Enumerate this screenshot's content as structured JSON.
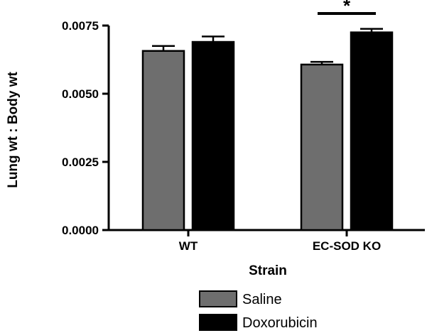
{
  "chart_data": {
    "type": "bar",
    "title": "",
    "xlabel": "Strain",
    "ylabel": "Lung wt : Body wt",
    "categories": [
      "WT",
      "EC-SOD KO"
    ],
    "ylim": [
      0,
      0.0075
    ],
    "yticks": [
      0.0,
      0.0025,
      0.005,
      0.0075
    ],
    "ytick_labels": [
      "0.0000",
      "0.0025",
      "0.0050",
      "0.0075"
    ],
    "series": [
      {
        "name": "Saline",
        "color": "#6e6e6e",
        "values": [
          0.00657,
          0.00607
        ],
        "errors": [
          0.00018,
          0.0001
        ]
      },
      {
        "name": "Doxorubicin",
        "color": "#000000",
        "values": [
          0.0069,
          0.00725
        ],
        "errors": [
          0.0002,
          0.00013
        ]
      }
    ],
    "significance": {
      "category": "EC-SOD KO",
      "label": "*"
    },
    "legend_position": "bottom",
    "grid": false
  }
}
